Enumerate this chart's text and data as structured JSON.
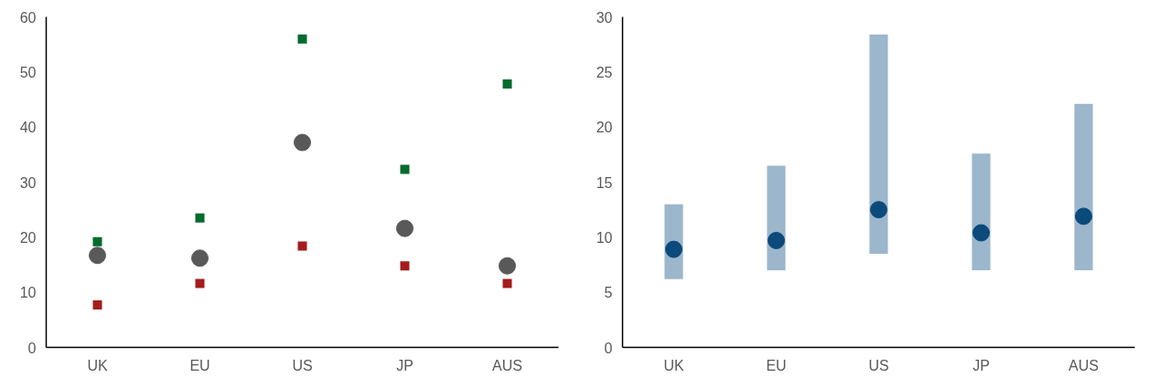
{
  "chart_data": [
    {
      "type": "scatter",
      "categories": [
        "UK",
        "EU",
        "US",
        "JP",
        "AUS"
      ],
      "ylim": [
        0,
        60
      ],
      "yticks": [
        0,
        10,
        20,
        30,
        40,
        50,
        60
      ],
      "grid": false,
      "series": [
        {
          "marker": "square",
          "color": "#006b2d",
          "values": [
            19.2,
            23.5,
            56,
            32.3,
            47.8
          ]
        },
        {
          "marker": "circle",
          "color": "#595959",
          "values": [
            16.7,
            16.2,
            37.2,
            21.6,
            14.8
          ]
        },
        {
          "marker": "square",
          "color": "#a51c1c",
          "values": [
            7.7,
            11.6,
            18.4,
            14.8,
            11.6
          ]
        }
      ]
    },
    {
      "type": "bar",
      "categories": [
        "UK",
        "EU",
        "US",
        "JP",
        "AUS"
      ],
      "ylim": [
        0,
        30
      ],
      "yticks": [
        0,
        5,
        10,
        15,
        20,
        25,
        30
      ],
      "grid": false,
      "series": [
        {
          "color": "#9cb6cc",
          "base": [
            6.2,
            7.0,
            8.5,
            7.0,
            7.0
          ],
          "values": [
            6.8,
            9.5,
            19.9,
            10.6,
            15.1
          ]
        },
        {
          "type": "scatter",
          "marker": "circle",
          "color": "#0b4a7a",
          "values": [
            8.9,
            9.7,
            12.5,
            10.4,
            11.9
          ]
        }
      ]
    }
  ]
}
